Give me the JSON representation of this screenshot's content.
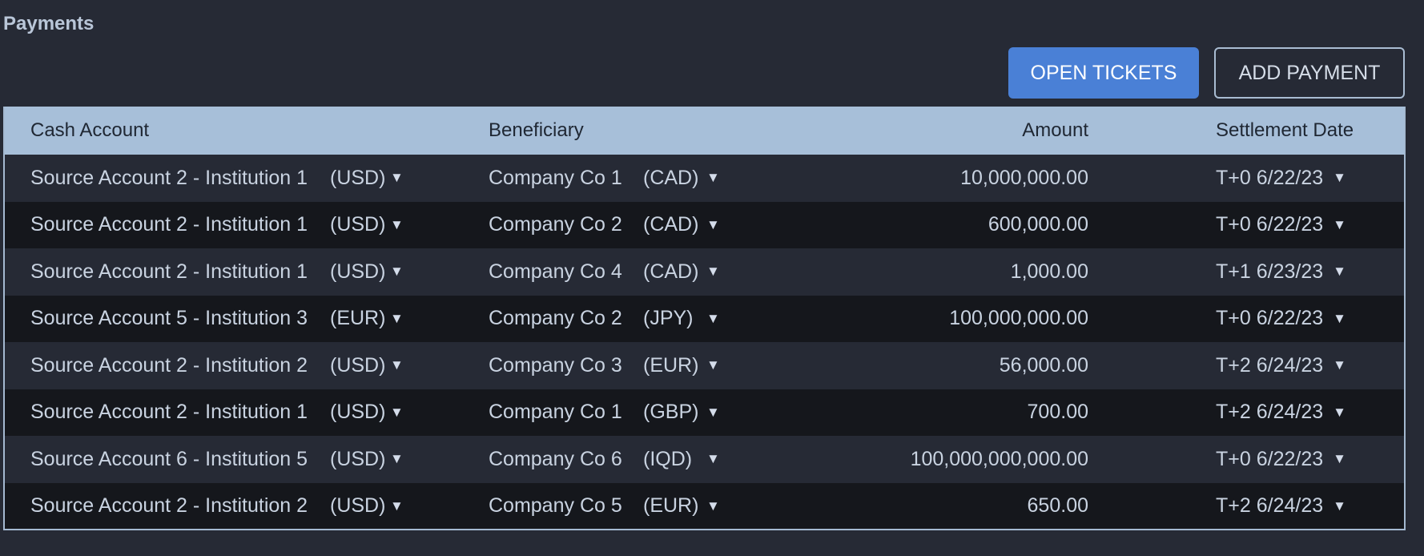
{
  "title": "Payments",
  "buttons": {
    "open_tickets": "OPEN TICKETS",
    "add_payment": "ADD PAYMENT"
  },
  "columns": {
    "cash_account": "Cash Account",
    "beneficiary": "Beneficiary",
    "amount": "Amount",
    "settlement_date": "Settlement Date"
  },
  "dropdown_arrow": "▼",
  "colors": {
    "background": "#262a35",
    "row_alt": "#15171c",
    "header": "#a7bfd9",
    "primary_button": "#4a80d6"
  },
  "rows": [
    {
      "account": "Source Account 2 - Institution 1",
      "account_ccy": "(USD)",
      "beneficiary": "Company Co 1",
      "ben_ccy": "(CAD)",
      "amount": "10,000,000.00",
      "date": "T+0 6/22/23"
    },
    {
      "account": "Source Account 2 - Institution 1",
      "account_ccy": "(USD)",
      "beneficiary": "Company Co 2",
      "ben_ccy": "(CAD)",
      "amount": "600,000.00",
      "date": "T+0 6/22/23"
    },
    {
      "account": "Source Account 2 - Institution 1",
      "account_ccy": "(USD)",
      "beneficiary": "Company Co 4",
      "ben_ccy": "(CAD)",
      "amount": "1,000.00",
      "date": "T+1 6/23/23"
    },
    {
      "account": "Source Account 5 - Institution 3",
      "account_ccy": "(EUR)",
      "beneficiary": "Company Co 2",
      "ben_ccy": "(JPY)",
      "amount": "100,000,000.00",
      "date": "T+0 6/22/23"
    },
    {
      "account": "Source Account 2 - Institution 2",
      "account_ccy": "(USD)",
      "beneficiary": "Company Co 3",
      "ben_ccy": "(EUR)",
      "amount": "56,000.00",
      "date": "T+2 6/24/23"
    },
    {
      "account": "Source Account 2 - Institution 1",
      "account_ccy": "(USD)",
      "beneficiary": "Company Co 1",
      "ben_ccy": "(GBP)",
      "amount": "700.00",
      "date": "T+2 6/24/23"
    },
    {
      "account": "Source Account 6 - Institution 5",
      "account_ccy": "(USD)",
      "beneficiary": "Company Co 6",
      "ben_ccy": "(IQD)",
      "amount": "100,000,000,000.00",
      "date": "T+0 6/22/23"
    },
    {
      "account": "Source Account 2 - Institution 2",
      "account_ccy": "(USD)",
      "beneficiary": "Company Co 5",
      "ben_ccy": "(EUR)",
      "amount": "650.00",
      "date": "T+2 6/24/23"
    }
  ]
}
